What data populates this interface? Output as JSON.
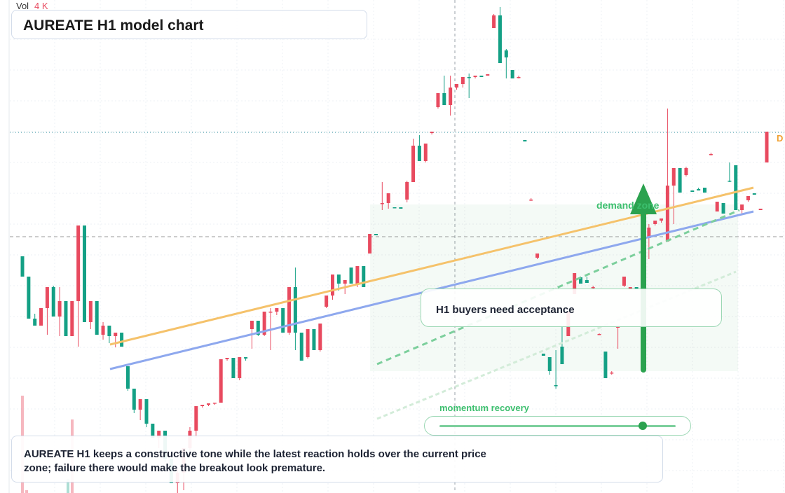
{
  "title": "AUREATE H1 model chart",
  "volume": {
    "label": "Vol",
    "value": "4 K"
  },
  "annotations": {
    "zone_label": "demand zone",
    "callout": "H1 buyers need acceptance",
    "momentum_label": "momentum recovery",
    "momentum_level": 0.86,
    "note": "AUREATE H1 keeps a constructive tone while the latest reaction holds over the current price zone; failure there would make the breakout look premature.",
    "axis_tag": "D"
  },
  "colors": {
    "up": "#14a085",
    "down": "#e84a5f",
    "trend_orange": "#f5c26b",
    "trend_blue": "#8ea8ee",
    "zone": "#2ba24f"
  },
  "chart_data": {
    "type": "candlestick",
    "title": "AUREATE H1 model chart",
    "ylim": [
      0,
      704
    ],
    "candles": [
      [
        366,
        366,
        395,
        395,
        1
      ],
      [
        395,
        395,
        455,
        455,
        1
      ],
      [
        455,
        448,
        465,
        465,
        1
      ],
      [
        465,
        440,
        462,
        440,
        0
      ],
      [
        440,
        410,
        478,
        410,
        0
      ],
      [
        410,
        408,
        452,
        452,
        1
      ],
      [
        452,
        410,
        480,
        430,
        0
      ],
      [
        430,
        430,
        480,
        480,
        1
      ],
      [
        480,
        430,
        455,
        430,
        0
      ],
      [
        430,
        322,
        495,
        322,
        0
      ],
      [
        322,
        322,
        460,
        460,
        1
      ],
      [
        460,
        430,
        470,
        430,
        0
      ],
      [
        430,
        430,
        478,
        478,
        1
      ],
      [
        478,
        460,
        485,
        465,
        0
      ],
      [
        465,
        465,
        490,
        480,
        1
      ],
      [
        480,
        475,
        496,
        475,
        0
      ],
      [
        475,
        475,
        495,
        495,
        1
      ],
      [
        523,
        523,
        558,
        555,
        1
      ],
      [
        555,
        555,
        590,
        585,
        1
      ],
      [
        585,
        570,
        600,
        570,
        0
      ],
      [
        570,
        570,
        610,
        605,
        1
      ],
      [
        605,
        605,
        625,
        625,
        1
      ],
      [
        625,
        615,
        640,
        615,
        0
      ],
      [
        615,
        615,
        660,
        655,
        1
      ],
      [
        655,
        655,
        690,
        690,
        1
      ],
      [
        690,
        670,
        704,
        675,
        0
      ],
      [
        675,
        640,
        700,
        640,
        0
      ],
      [
        640,
        610,
        650,
        615,
        0
      ],
      [
        615,
        580,
        625,
        580,
        0
      ],
      [
        580,
        578,
        582,
        578,
        0
      ],
      [
        578,
        576,
        580,
        576,
        0
      ],
      [
        576,
        575,
        578,
        575,
        0
      ],
      [
        575,
        513,
        575,
        513,
        0
      ],
      [
        513,
        511,
        515,
        511,
        0
      ],
      [
        511,
        511,
        540,
        540,
        1
      ],
      [
        540,
        510,
        543,
        510,
        0
      ],
      [
        510,
        510,
        515,
        512,
        1
      ],
      [
        470,
        458,
        498,
        458,
        0
      ],
      [
        458,
        458,
        480,
        478,
        1
      ],
      [
        478,
        445,
        480,
        445,
        0
      ],
      [
        445,
        440,
        500,
        445,
        0
      ],
      [
        445,
        440,
        450,
        440,
        0
      ],
      [
        440,
        440,
        475,
        475,
        1
      ],
      [
        475,
        410,
        478,
        410,
        0
      ],
      [
        410,
        382,
        500,
        475,
        1
      ],
      [
        475,
        475,
        515,
        515,
        1
      ],
      [
        510,
        470,
        512,
        470,
        0
      ],
      [
        470,
        470,
        500,
        500,
        1
      ],
      [
        500,
        462,
        502,
        462,
        0
      ],
      [
        438,
        422,
        440,
        422,
        0
      ],
      [
        422,
        392,
        428,
        392,
        0
      ],
      [
        392,
        392,
        415,
        405,
        1
      ],
      [
        405,
        400,
        420,
        400,
        0
      ],
      [
        382,
        382,
        405,
        405,
        1
      ],
      [
        405,
        380,
        410,
        380,
        0
      ],
      [
        380,
        380,
        410,
        410,
        1
      ],
      [
        362,
        334,
        362,
        334,
        0
      ],
      [
        334,
        334,
        336,
        336,
        1
      ],
      [
        290,
        260,
        300,
        290,
        0
      ],
      [
        290,
        276,
        298,
        276,
        0
      ],
      [
        296,
        296,
        296,
        296,
        1
      ],
      [
        296,
        296,
        298,
        298,
        1
      ],
      [
        285,
        258,
        289,
        260,
        0
      ],
      [
        260,
        198,
        260,
        208,
        0
      ],
      [
        208,
        193,
        230,
        230,
        1
      ],
      [
        230,
        205,
        232,
        205,
        0
      ],
      [
        190,
        188,
        192,
        188,
        0
      ],
      [
        153,
        133,
        155,
        133,
        0
      ],
      [
        133,
        108,
        150,
        150,
        1
      ],
      [
        150,
        108,
        165,
        125,
        0
      ],
      [
        125,
        120,
        128,
        120,
        0
      ],
      [
        120,
        110,
        125,
        110,
        0
      ],
      [
        110,
        105,
        140,
        110,
        1
      ],
      [
        110,
        108,
        112,
        108,
        0
      ],
      [
        108,
        108,
        110,
        110,
        1
      ],
      [
        108,
        106,
        108,
        106,
        0
      ],
      [
        40,
        20,
        40,
        22,
        0
      ],
      [
        22,
        10,
        90,
        90,
        1
      ],
      [
        72,
        70,
        112,
        82,
        1
      ],
      [
        100,
        100,
        112,
        112,
        1
      ],
      [
        110,
        108,
        112,
        110,
        0
      ],
      [
        200,
        200,
        202,
        202,
        1
      ],
      [
        285,
        283,
        287,
        285,
        0
      ],
      [
        368,
        362,
        370,
        362,
        0
      ],
      [
        505,
        505,
        508,
        508,
        1
      ],
      [
        510,
        510,
        535,
        530,
        1
      ],
      [
        550,
        500,
        555,
        550,
        1
      ],
      [
        495,
        465,
        520,
        520,
        1
      ],
      [
        480,
        445,
        480,
        445,
        0
      ],
      [
        420,
        390,
        420,
        390,
        0
      ],
      [
        405,
        395,
        405,
        396,
        1
      ],
      [
        400,
        395,
        404,
        404,
        1
      ],
      [
        410,
        408,
        412,
        410,
        0
      ],
      [
        477,
        476,
        478,
        477,
        0
      ],
      [
        502,
        502,
        540,
        540,
        1
      ],
      [
        532,
        530,
        535,
        532,
        0
      ],
      [
        468,
        465,
        498,
        465,
        0
      ],
      [
        408,
        395,
        410,
        395,
        0
      ],
      [
        410,
        410,
        412,
        412,
        0
      ],
      [
        410,
        410,
        412,
        412,
        1
      ],
      [
        325,
        325,
        330,
        325,
        1
      ],
      [
        340,
        320,
        370,
        325,
        0
      ],
      [
        320,
        315,
        322,
        315,
        0
      ],
      [
        315,
        312,
        318,
        312,
        0
      ],
      [
        345,
        155,
        345,
        265,
        0
      ],
      [
        265,
        240,
        320,
        240,
        0
      ],
      [
        240,
        240,
        275,
        275,
        1
      ],
      [
        250,
        238,
        252,
        240,
        0
      ],
      [
        272,
        272,
        274,
        274,
        1
      ],
      [
        270,
        268,
        272,
        272,
        1
      ],
      [
        268,
        268,
        275,
        275,
        1
      ],
      [
        220,
        218,
        222,
        220,
        0
      ],
      [
        302,
        288,
        302,
        288,
        0
      ],
      [
        290,
        290,
        305,
        305,
        1
      ],
      [
        258,
        232,
        260,
        258,
        1
      ],
      [
        236,
        236,
        300,
        300,
        1
      ],
      [
        300,
        292,
        305,
        292,
        0
      ],
      [
        286,
        280,
        288,
        280,
        0
      ],
      [
        276,
        276,
        278,
        278,
        1
      ],
      [
        300,
        298,
        300,
        298,
        0
      ],
      [
        232,
        188,
        232,
        188,
        0
      ]
    ],
    "volume_bars": [
      {
        "x": 32,
        "v": 139,
        "up": false
      },
      {
        "x": 103,
        "v": 105,
        "up": false
      },
      {
        "x": 97,
        "v": 20,
        "up": true
      },
      {
        "x": 38,
        "v": 4,
        "up": false
      }
    ],
    "trendlines": [
      {
        "color": "#f5c26b",
        "from": [
          157,
          492
        ],
        "to": [
          1075,
          268
        ]
      },
      {
        "color": "#8ea8ee",
        "from": [
          157,
          527
        ],
        "to": [
          1075,
          302
        ]
      },
      {
        "color": "#7ccf9c",
        "dash": "8,6",
        "from": [
          538,
          520
        ],
        "to": [
          1055,
          300
        ]
      },
      {
        "color": "#d3ecd9",
        "dash": "6,4",
        "from": [
          538,
          598
        ],
        "to": [
          1050,
          388
        ]
      }
    ],
    "horizontal_levels": [
      {
        "y": 189,
        "style": "dotted",
        "color": "#2a8e9c"
      },
      {
        "y": 338,
        "style": "dashed",
        "color": "#999"
      }
    ],
    "arrow": {
      "x": 918,
      "y_from": 528,
      "y_to": 262,
      "color": "#2ba24f"
    }
  }
}
